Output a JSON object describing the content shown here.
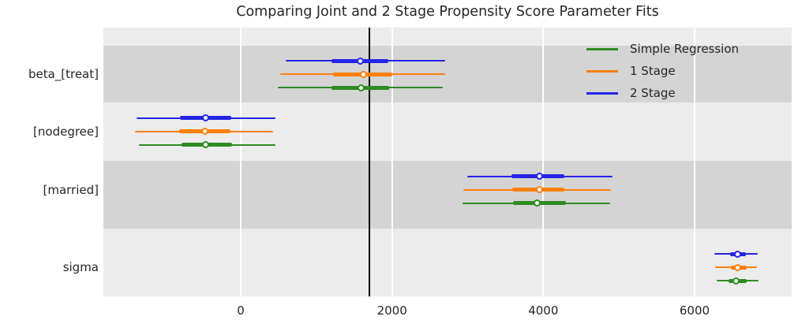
{
  "title": "Comparing Joint and 2 Stage Propensity Score Parameter Fits",
  "colors": {
    "band_dark": "#d4d4d4",
    "band_light": "#ececec",
    "gridline": "#ffffff",
    "reference_line": "#000000",
    "text": "#262626",
    "simple_regression": "#2e8b22",
    "one_stage": "#ff7f0e",
    "two_stage": "#2424e8"
  },
  "chart_data": {
    "type": "forest",
    "subtype": "horizontal credible-interval (forest) plot; thin line = outer interval, thick line = inner interval, white circle = median",
    "title": "Comparing Joint and 2 Stage Propensity Score Parameter Fits",
    "parameters": [
      "beta_[treat]",
      "[nodegree]",
      "[married]",
      "sigma"
    ],
    "x_tick_labels": [
      "0",
      "2000",
      "4000",
      "6000"
    ],
    "x_tick_values": [
      0,
      2000,
      4000,
      6000
    ],
    "xlim": [
      -1816,
      7284
    ],
    "reference_line_x": 1700,
    "legend_position": "upper right inside plot, no frame",
    "background": "alternating gray horizontal bands per parameter with white vertical gridlines",
    "series": [
      {
        "name": "Simple Regression",
        "color": "#2e8b22",
        "data": [
          {
            "parameter": "beta_[treat]",
            "median": 1590,
            "inner": [
              1200,
              1960
            ],
            "outer": [
              490,
              2670
            ]
          },
          {
            "parameter": "[nodegree]",
            "median": -460,
            "inner": [
              -780,
              -120
            ],
            "outer": [
              -1350,
              460
            ]
          },
          {
            "parameter": "[married]",
            "median": 3920,
            "inner": [
              3600,
              4300
            ],
            "outer": [
              2930,
              4880
            ]
          },
          {
            "parameter": "sigma",
            "median": 6550,
            "inner": [
              6450,
              6690
            ],
            "outer": [
              6290,
              6850
            ]
          }
        ]
      },
      {
        "name": "1 Stage",
        "color": "#ff7f0e",
        "data": [
          {
            "parameter": "beta_[treat]",
            "median": 1620,
            "inner": [
              1220,
              2000
            ],
            "outer": [
              520,
              2700
            ]
          },
          {
            "parameter": "[nodegree]",
            "median": -480,
            "inner": [
              -810,
              -140
            ],
            "outer": [
              -1400,
              430
            ]
          },
          {
            "parameter": "[married]",
            "median": 3950,
            "inner": [
              3590,
              4280
            ],
            "outer": [
              2940,
              4890
            ]
          },
          {
            "parameter": "sigma",
            "median": 6570,
            "inner": [
              6480,
              6690
            ],
            "outer": [
              6270,
              6830
            ]
          }
        ]
      },
      {
        "name": "2 Stage",
        "color": "#2424e8",
        "data": [
          {
            "parameter": "beta_[treat]",
            "median": 1580,
            "inner": [
              1200,
              1950
            ],
            "outer": [
              590,
              2700
            ]
          },
          {
            "parameter": "[nodegree]",
            "median": -460,
            "inner": [
              -800,
              -130
            ],
            "outer": [
              -1380,
              460
            ]
          },
          {
            "parameter": "[married]",
            "median": 3950,
            "inner": [
              3580,
              4280
            ],
            "outer": [
              2990,
              4920
            ]
          },
          {
            "parameter": "sigma",
            "median": 6570,
            "inner": [
              6470,
              6680
            ],
            "outer": [
              6260,
              6840
            ]
          }
        ]
      }
    ]
  }
}
